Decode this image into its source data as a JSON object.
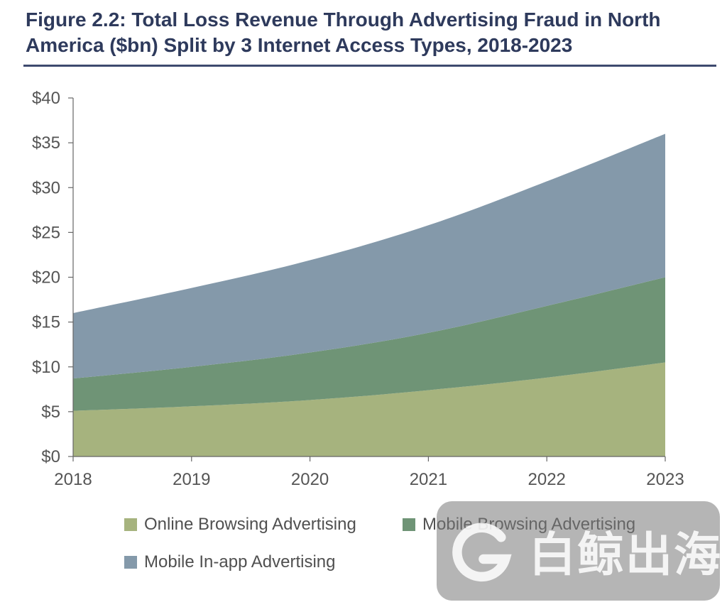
{
  "title": "Figure 2.2: Total Loss Revenue Through Advertising Fraud in North America ($bn) Split by 3 Internet Access Types, 2018-2023",
  "chart_data": {
    "type": "area",
    "stacked": true,
    "title": "Figure 2.2: Total Loss Revenue Through Advertising Fraud in North America ($bn) Split by 3 Internet Access Types, 2018-2023",
    "xlabel": "",
    "ylabel": "",
    "categories": [
      "2018",
      "2019",
      "2020",
      "2021",
      "2022",
      "2023"
    ],
    "ylim": [
      0,
      40
    ],
    "yticks": [
      0,
      5,
      10,
      15,
      20,
      25,
      30,
      35,
      40
    ],
    "ytick_labels": [
      "$0",
      "$5",
      "$10",
      "$15",
      "$20",
      "$25",
      "$30",
      "$35",
      "$40"
    ],
    "grid": false,
    "legend_position": "bottom",
    "series": [
      {
        "name": "Online Browsing Advertising",
        "color": "#a6b37e",
        "values": [
          5.1,
          5.6,
          6.3,
          7.4,
          8.8,
          10.5
        ]
      },
      {
        "name": "Mobile Browsing Advertising",
        "color": "#6f9476",
        "values": [
          3.6,
          4.4,
          5.3,
          6.4,
          8.0,
          9.5
        ]
      },
      {
        "name": "Mobile In-app Advertising",
        "color": "#8499aa",
        "values": [
          7.3,
          8.8,
          10.3,
          12.0,
          13.9,
          16.0
        ]
      }
    ]
  },
  "colors": {
    "title": "#2e3a5c",
    "rule": "#3e4a6e",
    "axis": "#666666"
  },
  "watermark": {
    "text": "白鲸出海",
    "logo_icon": "g-logo-icon"
  }
}
